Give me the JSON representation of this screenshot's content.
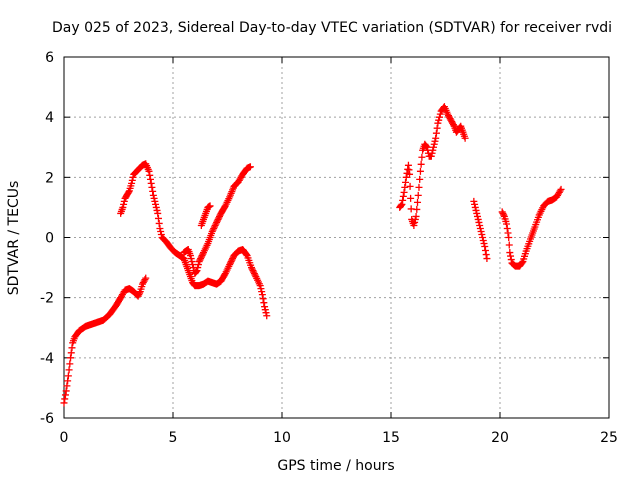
{
  "chart_data": {
    "type": "scatter",
    "title": "Day 025 of 2023, Sidereal Day-to-day VTEC variation (SDTVAR) for receiver rvdi",
    "xlabel": "GPS time / hours",
    "ylabel": "SDTVAR / TECUs",
    "xlim": [
      0,
      25
    ],
    "ylim": [
      -6,
      6
    ],
    "xticks": [
      0,
      5,
      10,
      15,
      20,
      25
    ],
    "yticks": [
      -6,
      -4,
      -2,
      0,
      2,
      4,
      6
    ],
    "xtick_labels": [
      "0",
      "5",
      "10",
      "15",
      "20",
      "25"
    ],
    "ytick_labels": [
      "-6",
      "-4",
      "-2",
      "0",
      "2",
      "4",
      "6"
    ],
    "grid": true,
    "marker": "+",
    "color": "#ff0000",
    "segments": [
      [
        [
          0.0,
          -5.5
        ],
        [
          0.1,
          -5.1
        ],
        [
          0.2,
          -4.6
        ],
        [
          0.3,
          -4.0
        ],
        [
          0.4,
          -3.5
        ],
        [
          0.5,
          -3.3
        ],
        [
          0.7,
          -3.1
        ],
        [
          1.0,
          -2.95
        ],
        [
          1.4,
          -2.85
        ],
        [
          1.8,
          -2.75
        ],
        [
          2.1,
          -2.55
        ],
        [
          2.4,
          -2.25
        ],
        [
          2.6,
          -2.0
        ],
        [
          2.8,
          -1.75
        ],
        [
          3.0,
          -1.7
        ],
        [
          3.2,
          -1.8
        ],
        [
          3.4,
          -1.95
        ],
        [
          3.5,
          -1.8
        ],
        [
          3.6,
          -1.55
        ],
        [
          3.75,
          -1.35
        ]
      ],
      [
        [
          2.6,
          0.8
        ],
        [
          2.7,
          1.0
        ],
        [
          2.8,
          1.3
        ],
        [
          3.0,
          1.55
        ],
        [
          3.1,
          1.8
        ],
        [
          3.2,
          2.1
        ],
        [
          3.4,
          2.25
        ],
        [
          3.6,
          2.4
        ],
        [
          3.75,
          2.45
        ],
        [
          3.9,
          2.2
        ],
        [
          4.0,
          1.8
        ],
        [
          4.1,
          1.4
        ],
        [
          4.2,
          1.1
        ],
        [
          4.3,
          0.8
        ],
        [
          4.4,
          0.3
        ],
        [
          4.5,
          0.0
        ],
        [
          4.7,
          -0.15
        ],
        [
          4.9,
          -0.35
        ],
        [
          5.1,
          -0.5
        ],
        [
          5.3,
          -0.6
        ],
        [
          5.5,
          -0.7
        ],
        [
          5.6,
          -0.9
        ],
        [
          5.7,
          -1.1
        ],
        [
          5.8,
          -1.3
        ],
        [
          5.9,
          -1.5
        ],
        [
          6.0,
          -1.6
        ],
        [
          6.2,
          -1.6
        ],
        [
          6.4,
          -1.55
        ],
        [
          6.6,
          -1.45
        ],
        [
          6.8,
          -1.5
        ],
        [
          7.0,
          -1.55
        ],
        [
          7.2,
          -1.45
        ],
        [
          7.4,
          -1.2
        ],
        [
          7.6,
          -0.9
        ],
        [
          7.8,
          -0.6
        ],
        [
          8.0,
          -0.45
        ],
        [
          8.2,
          -0.4
        ],
        [
          8.4,
          -0.6
        ],
        [
          8.6,
          -1.0
        ],
        [
          8.8,
          -1.3
        ],
        [
          9.0,
          -1.6
        ],
        [
          9.1,
          -1.9
        ],
        [
          9.2,
          -2.3
        ],
        [
          9.3,
          -2.6
        ]
      ],
      [
        [
          5.5,
          -0.5
        ],
        [
          5.7,
          -0.4
        ],
        [
          5.8,
          -0.6
        ],
        [
          5.9,
          -0.9
        ],
        [
          6.0,
          -1.2
        ],
        [
          6.1,
          -1.1
        ],
        [
          6.2,
          -0.8
        ],
        [
          6.4,
          -0.5
        ],
        [
          6.6,
          -0.2
        ],
        [
          6.8,
          0.2
        ],
        [
          7.0,
          0.5
        ],
        [
          7.2,
          0.8
        ],
        [
          7.4,
          1.05
        ],
        [
          7.6,
          1.35
        ],
        [
          7.8,
          1.7
        ],
        [
          8.0,
          1.85
        ],
        [
          8.2,
          2.1
        ],
        [
          8.4,
          2.3
        ],
        [
          8.55,
          2.35
        ]
      ],
      [
        [
          6.3,
          0.4
        ],
        [
          6.4,
          0.6
        ],
        [
          6.5,
          0.8
        ],
        [
          6.6,
          1.0
        ],
        [
          6.7,
          1.05
        ]
      ],
      [
        [
          15.4,
          1.0
        ],
        [
          15.5,
          1.1
        ],
        [
          15.6,
          1.5
        ],
        [
          15.7,
          2.0
        ],
        [
          15.8,
          2.4
        ],
        [
          15.85,
          2.1
        ],
        [
          15.9,
          1.3
        ],
        [
          15.95,
          0.6
        ],
        [
          16.05,
          0.4
        ],
        [
          16.15,
          0.7
        ],
        [
          16.25,
          1.4
        ],
        [
          16.35,
          2.2
        ],
        [
          16.45,
          2.9
        ],
        [
          16.55,
          3.1
        ],
        [
          16.65,
          3.0
        ],
        [
          16.75,
          2.7
        ],
        [
          16.85,
          2.7
        ],
        [
          16.95,
          3.0
        ],
        [
          17.05,
          3.3
        ],
        [
          17.15,
          3.8
        ],
        [
          17.3,
          4.2
        ],
        [
          17.45,
          4.35
        ],
        [
          17.6,
          4.1
        ],
        [
          17.75,
          3.9
        ],
        [
          17.9,
          3.7
        ],
        [
          18.0,
          3.5
        ],
        [
          18.1,
          3.6
        ],
        [
          18.2,
          3.7
        ],
        [
          18.3,
          3.5
        ],
        [
          18.4,
          3.3
        ]
      ],
      [
        [
          18.8,
          1.2
        ],
        [
          18.9,
          0.9
        ],
        [
          19.0,
          0.6
        ],
        [
          19.1,
          0.3
        ],
        [
          19.2,
          0.0
        ],
        [
          19.3,
          -0.3
        ],
        [
          19.4,
          -0.7
        ]
      ],
      [
        [
          20.1,
          0.85
        ],
        [
          20.2,
          0.7
        ],
        [
          20.3,
          0.45
        ],
        [
          20.4,
          0.0
        ],
        [
          20.45,
          -0.5
        ],
        [
          20.55,
          -0.85
        ],
        [
          20.7,
          -0.95
        ],
        [
          20.9,
          -0.95
        ],
        [
          21.05,
          -0.8
        ],
        [
          21.2,
          -0.45
        ],
        [
          21.4,
          -0.05
        ],
        [
          21.6,
          0.35
        ],
        [
          21.8,
          0.75
        ],
        [
          22.0,
          1.05
        ],
        [
          22.2,
          1.2
        ],
        [
          22.4,
          1.25
        ],
        [
          22.6,
          1.35
        ],
        [
          22.8,
          1.6
        ]
      ]
    ]
  }
}
